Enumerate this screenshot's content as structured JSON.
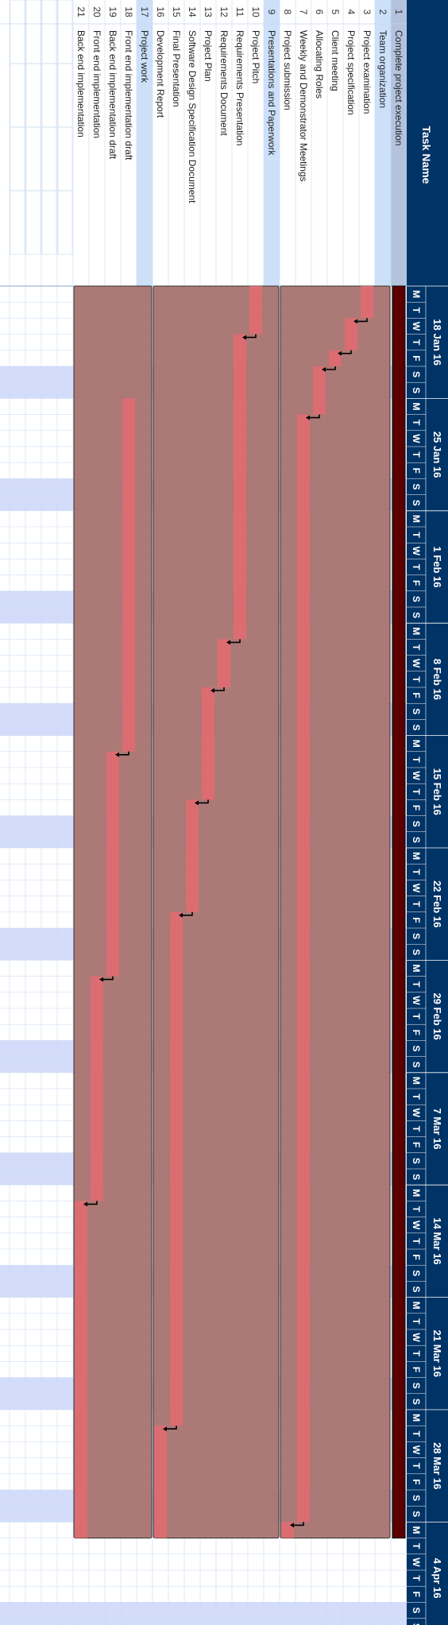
{
  "header": {
    "num_col": "",
    "task_col": "Task Name"
  },
  "weeks": [
    "18 Jan 16",
    "25 Jan 16",
    "1 Feb 16",
    "8 Feb 16",
    "15 Feb 16",
    "22 Feb 16",
    "29 Feb 16",
    "7 Mar 16",
    "14 Mar 16",
    "21 Mar 16",
    "28 Mar 16",
    "4 Apr 16"
  ],
  "day_letters": [
    "M",
    "T",
    "W",
    "T",
    "F",
    "S",
    "S"
  ],
  "colors": {
    "header_bg": "#003366",
    "weekend_band": "#d3ddfb",
    "summary_row_top": "#b4c3dd",
    "summary_row": "#cce0fa",
    "task_bar": "#e06c72",
    "summary_bar": "#a8736f",
    "project_bar": "#5a0000",
    "grid": "#c9d9ef",
    "link": "#000000"
  },
  "chart_data": {
    "type": "gantt",
    "timeline": {
      "start": "2016-01-18",
      "end": "2016-04-10",
      "weekend_shading": true
    },
    "tasks": [
      {
        "id": "1",
        "name": "Complete project execution",
        "start": "2016-01-18",
        "end": "2016-04-04",
        "kind": "project"
      },
      {
        "id": "2",
        "name": "Team organization",
        "start": "2016-01-18",
        "end": "2016-04-04",
        "kind": "summary"
      },
      {
        "id": "3",
        "name": "Project examination",
        "start": "2016-01-18",
        "end": "2016-01-19",
        "kind": "task"
      },
      {
        "id": "4",
        "name": "Project specification",
        "start": "2016-01-20",
        "end": "2016-01-21",
        "kind": "task"
      },
      {
        "id": "5",
        "name": "Client meeting",
        "start": "2016-01-22",
        "end": "2016-01-22",
        "kind": "task"
      },
      {
        "id": "6",
        "name": "Allocating Roles",
        "start": "2016-01-23",
        "end": "2016-01-25",
        "kind": "task"
      },
      {
        "id": "7",
        "name": "Weekly and Demonstrator Meetings",
        "start": "2016-01-26",
        "end": "2016-04-03",
        "kind": "task"
      },
      {
        "id": "8",
        "name": "Project submission",
        "start": "2016-04-04",
        "end": "2016-04-04",
        "kind": "task"
      },
      {
        "id": "9",
        "name": "Presentations and Paperwork",
        "start": "2016-01-18",
        "end": "2016-04-04",
        "kind": "summary"
      },
      {
        "id": "10",
        "name": "Project Pitch",
        "start": "2016-01-18",
        "end": "2016-01-20",
        "kind": "task"
      },
      {
        "id": "11",
        "name": "Requirements Presentation",
        "start": "2016-01-21",
        "end": "2016-02-08",
        "kind": "task"
      },
      {
        "id": "12",
        "name": "Requirements Document",
        "start": "2016-02-09",
        "end": "2016-02-11",
        "kind": "task"
      },
      {
        "id": "13",
        "name": "Project Plan",
        "start": "2016-02-12",
        "end": "2016-02-18",
        "kind": "task"
      },
      {
        "id": "14",
        "name": "Software Design Specification Document",
        "start": "2016-02-19",
        "end": "2016-02-25",
        "kind": "task"
      },
      {
        "id": "15",
        "name": "Final Presentation",
        "start": "2016-02-26",
        "end": "2016-03-28",
        "kind": "task"
      },
      {
        "id": "16",
        "name": "Development Report",
        "start": "2016-03-29",
        "end": "2016-04-04",
        "kind": "task"
      },
      {
        "id": "17",
        "name": "Project work",
        "start": "2016-01-18",
        "end": "2016-04-04",
        "kind": "summary"
      },
      {
        "id": "18",
        "name": "Front end implementation draft",
        "start": "2016-01-25",
        "end": "2016-02-15",
        "kind": "task"
      },
      {
        "id": "19",
        "name": "Back end implementation draft",
        "start": "2016-02-16",
        "end": "2016-02-29",
        "kind": "task"
      },
      {
        "id": "20",
        "name": "Front end implementation",
        "start": "2016-03-01",
        "end": "2016-03-14",
        "kind": "task"
      },
      {
        "id": "21",
        "name": "Back end implementation",
        "start": "2016-03-15",
        "end": "2016-04-04",
        "kind": "task"
      }
    ],
    "links": [
      [
        "3",
        "4"
      ],
      [
        "4",
        "5"
      ],
      [
        "5",
        "6"
      ],
      [
        "6",
        "7"
      ],
      [
        "7",
        "8"
      ],
      [
        "10",
        "11"
      ],
      [
        "11",
        "12"
      ],
      [
        "12",
        "13"
      ],
      [
        "13",
        "14"
      ],
      [
        "14",
        "15"
      ],
      [
        "15",
        "16"
      ],
      [
        "18",
        "19"
      ],
      [
        "19",
        "20"
      ],
      [
        "20",
        "21"
      ]
    ]
  }
}
